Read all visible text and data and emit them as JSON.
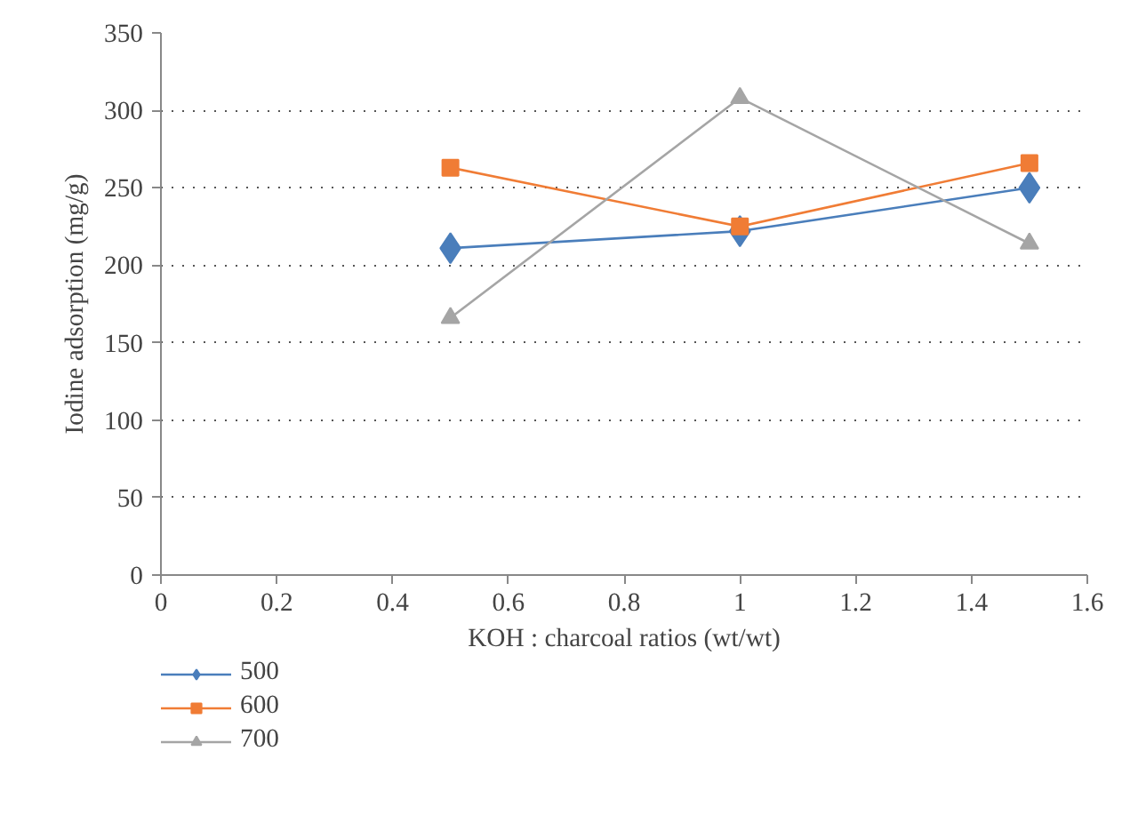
{
  "chart_data": {
    "type": "line",
    "xlabel": "KOH : charcoal ratios (wt/wt)",
    "ylabel": "Iodine adsorption (mg/g)",
    "x": [
      0.5,
      1,
      1.5
    ],
    "xlim": [
      0,
      1.6
    ],
    "xticks": [
      0,
      0.2,
      0.4,
      0.6,
      0.8,
      1,
      1.2,
      1.4,
      1.6
    ],
    "ylim": [
      0,
      350
    ],
    "yticks": [
      0,
      50,
      100,
      150,
      200,
      250,
      300,
      350
    ],
    "grid": "y",
    "legend": "bottom",
    "series": [
      {
        "name": "500",
        "color": "#4a7ebb",
        "marker": "diamond",
        "values": [
          211,
          222,
          250
        ]
      },
      {
        "name": "600",
        "color": "#f07c35",
        "marker": "square",
        "values": [
          263,
          225,
          266
        ]
      },
      {
        "name": "700",
        "color": "#a5a5a5",
        "marker": "triangle",
        "values": [
          166,
          308,
          214
        ]
      }
    ]
  }
}
